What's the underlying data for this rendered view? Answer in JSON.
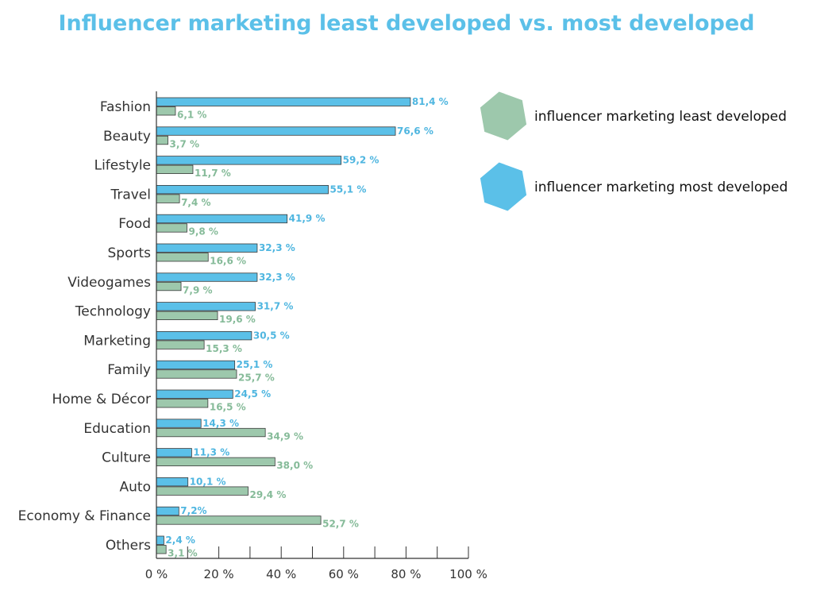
{
  "title": "Influencer marketing least developed vs. most developed",
  "colors": {
    "most": "#5bc0e8",
    "least": "#9dc8ac",
    "most_label": "#4fb6e0",
    "least_label": "#86bb99"
  },
  "chart_data": {
    "type": "bar",
    "orientation": "horizontal",
    "categories": [
      "Fashion",
      "Beauty",
      "Lifestyle",
      "Travel",
      "Food",
      "Sports",
      "Videogames",
      "Technology",
      "Marketing",
      "Family",
      "Home & Décor",
      "Education",
      "Culture",
      "Auto",
      "Economy & Finance",
      "Others"
    ],
    "series": [
      {
        "name": "influencer marketing most developed",
        "key": "most",
        "values": [
          81.4,
          76.6,
          59.2,
          55.1,
          41.9,
          32.3,
          32.3,
          31.7,
          30.5,
          25.1,
          24.5,
          14.3,
          11.3,
          10.1,
          7.2,
          2.4
        ],
        "labels": [
          "81,4 %",
          "76,6 %",
          "59,2 %",
          "55,1 %",
          "41,9 %",
          "32,3 %",
          "32,3 %",
          "31,7 %",
          "30,5 %",
          "25,1 %",
          "24,5 %",
          "14,3 %",
          "11,3 %",
          "10,1 %",
          "7,2%",
          "2,4 %"
        ]
      },
      {
        "name": "influencer marketing least developed",
        "key": "least",
        "values": [
          6.1,
          3.7,
          11.7,
          7.4,
          9.8,
          16.6,
          7.9,
          19.6,
          15.3,
          25.7,
          16.5,
          34.9,
          38.0,
          29.4,
          52.7,
          3.1
        ],
        "labels": [
          "6,1 %",
          "3,7 %",
          "11,7 %",
          "7,4 %",
          "9,8 %",
          "16,6 %",
          "7,9 %",
          "19,6 %",
          "15,3 %",
          "25,7 %",
          "16,5 %",
          "34,9 %",
          "38,0 %",
          "29,4 %",
          "52,7 %",
          "3,1 %"
        ]
      }
    ],
    "xlim": [
      0,
      100
    ],
    "xticks": [
      0,
      20,
      40,
      60,
      80,
      100
    ],
    "xtick_labels": [
      "0 %",
      "20 %",
      "40 %",
      "60 %",
      "80 %",
      "100 %"
    ],
    "grid": false,
    "legend": {
      "placement": "right",
      "entries": [
        {
          "label": "influencer marketing least developed",
          "key": "least",
          "marker": "hexagon"
        },
        {
          "label": "influencer marketing most developed",
          "key": "most",
          "marker": "hexagon"
        }
      ]
    }
  }
}
